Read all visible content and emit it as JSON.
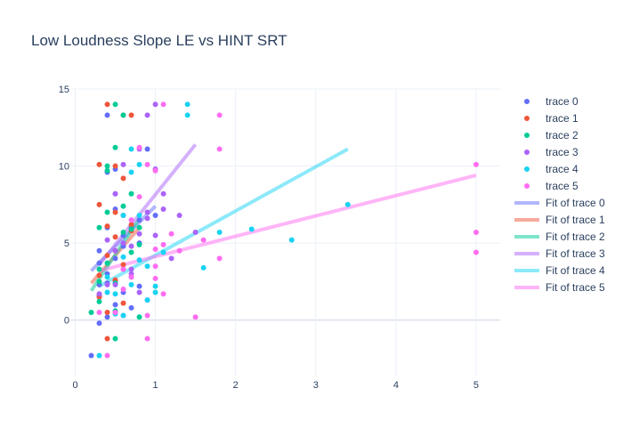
{
  "chart_data": {
    "type": "scatter",
    "title": "Low Loudness Slope LE vs HINT SRT",
    "xlabel": "",
    "ylabel": "",
    "xlim": [
      -0.05,
      5.3
    ],
    "ylim": [
      -3.6,
      15.0
    ],
    "xticks": [
      0,
      1,
      2,
      3,
      4,
      5
    ],
    "yticks": [
      0,
      5,
      10,
      15
    ],
    "grid": true,
    "legend_position": "right",
    "series": [
      {
        "name": "trace 0",
        "color": "#636efa",
        "x": [
          0.2,
          0.3,
          0.3,
          0.4,
          0.4,
          0.4,
          0.5,
          0.5,
          0.6,
          0.7,
          0.8,
          0.9,
          0.3,
          0.4,
          0.5,
          0.6,
          0.7,
          0.3,
          0.5,
          0.6,
          0.8,
          0.4,
          0.5,
          0.7,
          0.6,
          0.3,
          0.4,
          0.5,
          0.8,
          0.9,
          1.0
        ],
        "y": [
          -2.3,
          2.3,
          4.5,
          3.0,
          13.3,
          6.0,
          8.2,
          9.8,
          5.5,
          2.8,
          6.5,
          11.1,
          1.6,
          0.2,
          1.0,
          1.8,
          0.8,
          3.7,
          2.5,
          4.8,
          5.0,
          9.6,
          7.2,
          6.0,
          3.3,
          -0.2,
          2.4,
          4.0,
          2.2,
          1.3,
          6.8
        ]
      },
      {
        "name": "trace 1",
        "color": "#ef553b",
        "x": [
          0.3,
          0.3,
          0.4,
          0.4,
          0.5,
          0.5,
          0.6,
          0.6,
          0.7,
          0.3,
          0.4,
          0.5,
          0.6,
          0.7,
          0.4,
          0.5,
          0.3,
          0.6,
          0.4,
          0.7,
          0.5
        ],
        "y": [
          10.1,
          7.5,
          14.0,
          6.1,
          4.5,
          2.6,
          9.2,
          13.3,
          5.8,
          1.5,
          4.2,
          7.0,
          3.6,
          6.2,
          0.5,
          5.4,
          2.9,
          1.1,
          -1.2,
          13.3,
          10.0
        ]
      },
      {
        "name": "trace 2",
        "color": "#00cc96",
        "x": [
          0.2,
          0.3,
          0.3,
          0.4,
          0.5,
          0.5,
          0.6,
          0.7,
          0.8,
          0.3,
          0.4,
          0.5,
          0.6,
          0.7,
          0.8,
          0.4,
          0.5,
          0.6,
          0.3,
          0.7,
          0.5,
          0.4,
          0.8
        ],
        "y": [
          0.5,
          3.3,
          6.0,
          10.0,
          11.2,
          14.0,
          7.4,
          8.2,
          6.0,
          1.2,
          3.7,
          2.4,
          5.7,
          4.4,
          0.2,
          7.0,
          -1.2,
          13.3,
          2.5,
          5.9,
          0.6,
          9.7,
          4.9
        ]
      },
      {
        "name": "trace 3",
        "color": "#ab63fa",
        "x": [
          0.3,
          0.4,
          0.5,
          0.5,
          0.6,
          0.6,
          0.7,
          0.8,
          0.8,
          0.9,
          0.9,
          1.0,
          1.1,
          1.2,
          1.3,
          0.4,
          0.5,
          0.6,
          0.7,
          0.8,
          0.9,
          1.0,
          1.5,
          0.6,
          0.7,
          1.0,
          1.1
        ],
        "y": [
          1.7,
          5.2,
          8.2,
          2.3,
          6.8,
          0.3,
          4.8,
          5.6,
          11.1,
          7.0,
          13.3,
          14.0,
          8.2,
          4.0,
          6.8,
          2.3,
          4.5,
          10.1,
          3.0,
          1.8,
          6.6,
          5.5,
          5.7,
          5.0,
          3.3,
          9.8,
          7.2
        ]
      },
      {
        "name": "trace 4",
        "color": "#19d3f3",
        "x": [
          0.3,
          0.4,
          0.5,
          0.6,
          0.7,
          0.8,
          0.8,
          0.9,
          1.0,
          1.1,
          1.4,
          1.4,
          1.6,
          1.8,
          2.2,
          2.7,
          3.4,
          0.5,
          0.6,
          0.7,
          0.8,
          0.9,
          1.0,
          0.4,
          0.6,
          0.7
        ],
        "y": [
          -2.3,
          1.8,
          0.4,
          4.1,
          11.1,
          10.1,
          6.8,
          3.5,
          2.2,
          4.4,
          14.0,
          13.3,
          3.4,
          5.7,
          5.9,
          5.2,
          7.5,
          1.7,
          0.3,
          2.3,
          3.9,
          1.3,
          1.8,
          2.8,
          6.8,
          9.6
        ]
      },
      {
        "name": "trace 5",
        "color": "#ff6cf1",
        "x": [
          0.3,
          0.4,
          0.5,
          0.6,
          0.7,
          0.8,
          0.9,
          1.0,
          1.0,
          1.1,
          1.1,
          1.2,
          1.3,
          1.5,
          1.6,
          1.8,
          1.8,
          1.8,
          5.0,
          5.0,
          5.0,
          0.9,
          0.8,
          0.7,
          0.6,
          1.0,
          1.1,
          1.0,
          0.9
        ],
        "y": [
          0.5,
          -2.3,
          0.5,
          2.0,
          2.8,
          11.2,
          10.1,
          9.7,
          4.6,
          14.0,
          4.9,
          5.6,
          4.5,
          0.2,
          5.2,
          13.3,
          11.1,
          4.0,
          10.1,
          5.7,
          4.4,
          -1.2,
          8.0,
          6.5,
          3.3,
          2.7,
          1.7,
          3.5,
          0.3
        ]
      }
    ],
    "fits": [
      {
        "name": "Fit of trace 0",
        "color": "#636efa",
        "x": [
          0.2,
          1.0
        ],
        "y": [
          3.2,
          7.4
        ]
      },
      {
        "name": "Fit of trace 1",
        "color": "#ef553b",
        "x": [
          0.2,
          0.8
        ],
        "y": [
          2.4,
          6.0
        ]
      },
      {
        "name": "Fit of trace 2",
        "color": "#00cc96",
        "x": [
          0.2,
          0.8
        ],
        "y": [
          1.9,
          6.6
        ]
      },
      {
        "name": "Fit of trace 3",
        "color": "#ab63fa",
        "x": [
          0.3,
          1.5
        ],
        "y": [
          3.6,
          11.4
        ]
      },
      {
        "name": "Fit of trace 4",
        "color": "#19d3f3",
        "x": [
          0.3,
          3.4
        ],
        "y": [
          2.2,
          11.1
        ]
      },
      {
        "name": "Fit of trace 5",
        "color": "#ff6cf1",
        "x": [
          0.3,
          5.0
        ],
        "y": [
          3.2,
          9.4
        ]
      }
    ]
  }
}
